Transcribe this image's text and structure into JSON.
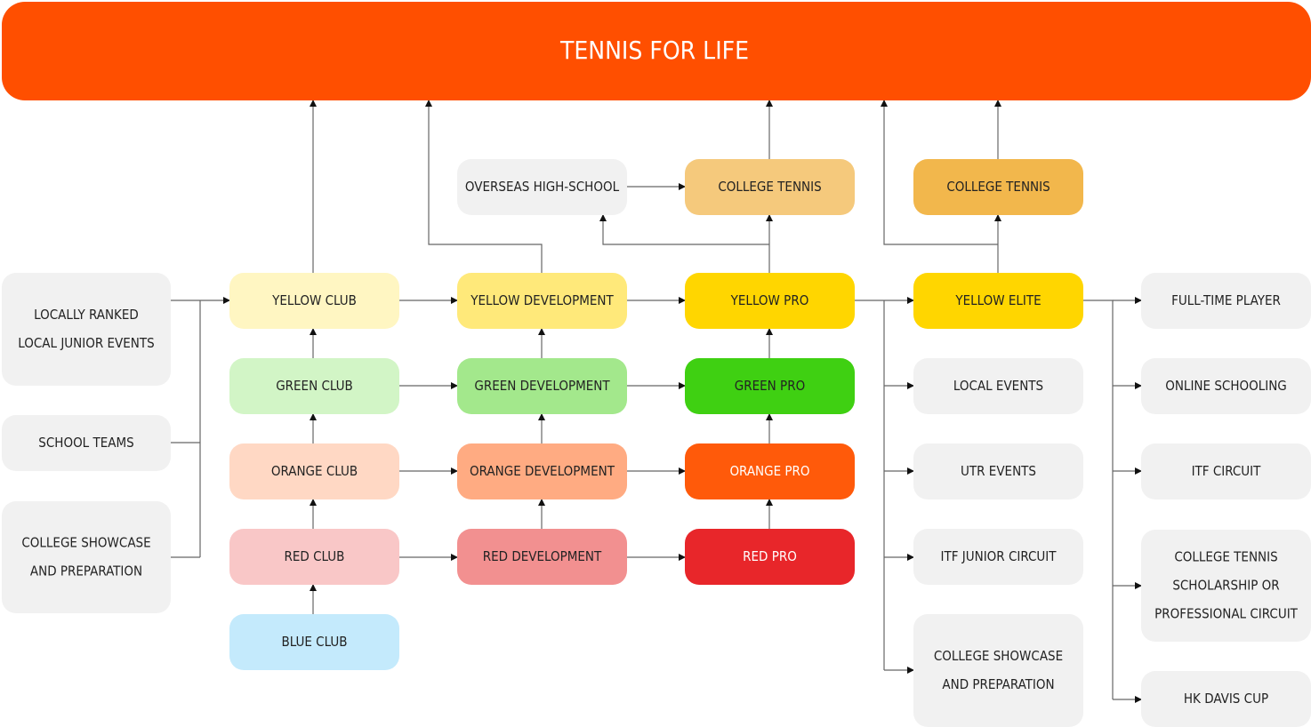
{
  "header": {
    "title": "TENNIS FOR LIFE"
  },
  "nodes": [
    {
      "lines": [
        "LOCALLY RANKED",
        "LOCAL JUNIOR EVENTS"
      ]
    },
    {
      "lines": [
        "SCHOOL TEAMS"
      ]
    },
    {
      "lines": [
        "COLLEGE SHOWCASE",
        "AND PREPARATION"
      ]
    },
    {
      "lines": [
        "YELLOW CLUB"
      ]
    },
    {
      "lines": [
        "GREEN CLUB"
      ]
    },
    {
      "lines": [
        "ORANGE CLUB"
      ]
    },
    {
      "lines": [
        "RED CLUB"
      ]
    },
    {
      "lines": [
        "BLUE CLUB"
      ]
    },
    {
      "lines": [
        "OVERSEAS HIGH-SCHOOL"
      ]
    },
    {
      "lines": [
        "YELLOW DEVELOPMENT"
      ]
    },
    {
      "lines": [
        "GREEN DEVELOPMENT"
      ]
    },
    {
      "lines": [
        "ORANGE DEVELOPMENT"
      ]
    },
    {
      "lines": [
        "RED DEVELOPMENT"
      ]
    },
    {
      "lines": [
        "COLLEGE TENNIS"
      ]
    },
    {
      "lines": [
        "YELLOW PRO"
      ]
    },
    {
      "lines": [
        "GREEN PRO"
      ]
    },
    {
      "lines": [
        "ORANGE PRO"
      ]
    },
    {
      "lines": [
        "RED PRO"
      ]
    },
    {
      "lines": [
        "COLLEGE TENNIS"
      ]
    },
    {
      "lines": [
        "YELLOW ELITE"
      ]
    },
    {
      "lines": [
        "LOCAL EVENTS"
      ]
    },
    {
      "lines": [
        "UTR EVENTS"
      ]
    },
    {
      "lines": [
        "ITF JUNIOR CIRCUIT"
      ]
    },
    {
      "lines": [
        "COLLEGE SHOWCASE",
        "AND PREPARATION"
      ]
    },
    {
      "lines": [
        "FULL-TIME PLAYER"
      ]
    },
    {
      "lines": [
        "ONLINE SCHOOLING"
      ]
    },
    {
      "lines": [
        "ITF CIRCUIT"
      ]
    },
    {
      "lines": [
        "COLLEGE TENNIS",
        "SCHOLARSHIP OR",
        "PROFESSIONAL CIRCUIT"
      ]
    },
    {
      "lines": [
        "HK DAVIS CUP"
      ]
    }
  ]
}
